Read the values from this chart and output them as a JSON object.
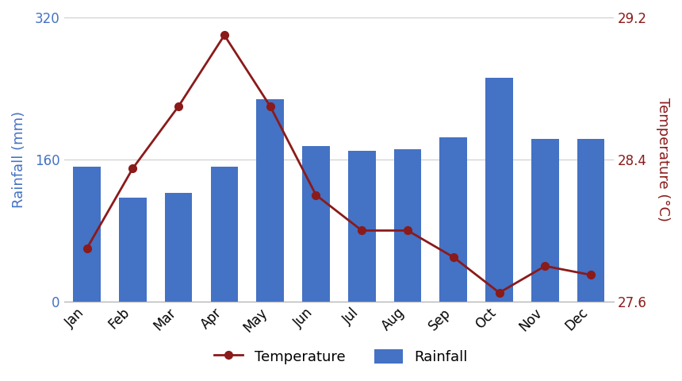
{
  "months": [
    "Jan",
    "Feb",
    "Mar",
    "Apr",
    "May",
    "Jun",
    "Jul",
    "Aug",
    "Sep",
    "Oct",
    "Nov",
    "Dec"
  ],
  "rainfall": [
    152,
    117,
    122,
    152,
    228,
    175,
    170,
    172,
    185,
    252,
    183,
    183
  ],
  "temperature": [
    27.9,
    28.35,
    28.7,
    29.1,
    28.7,
    28.2,
    28.0,
    28.0,
    27.85,
    27.65,
    27.8,
    27.75
  ],
  "bar_color": "#4472c4",
  "line_color": "#8B1A1A",
  "marker_color": "#8B1A1A",
  "left_axis_color": "#4472c4",
  "right_axis_color": "#8B1A1A",
  "ylabel_left": "Rainfall (mm)",
  "ylabel_right": "Temperature (°C)",
  "ylim_left": [
    0,
    320
  ],
  "ylim_right": [
    27.6,
    29.2
  ],
  "yticks_left": [
    0,
    160,
    320
  ],
  "yticks_right": [
    27.6,
    28.4,
    29.2
  ],
  "legend_labels": [
    "Temperature",
    "Rainfall"
  ],
  "background_color": "#ffffff",
  "grid_color": "#cccccc",
  "legend_fontsize": 13,
  "axis_label_fontsize": 13,
  "tick_fontsize": 12
}
